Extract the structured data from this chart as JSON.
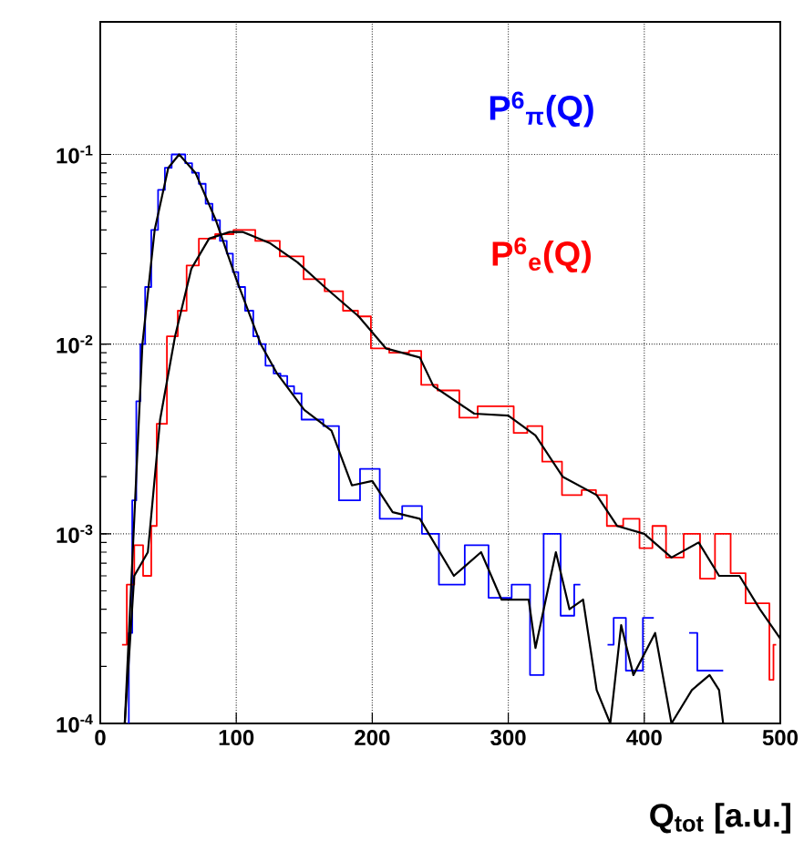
{
  "chart_data": {
    "type": "step",
    "xlabel": "Q$_{tot}$ [a.u.]",
    "xlim": [
      0,
      500
    ],
    "xticks": [
      0,
      100,
      200,
      300,
      400,
      500
    ],
    "ylim": [
      0.0001,
      0.5
    ],
    "log": "y",
    "yticks": [
      {
        "value": 0.0001,
        "label": "10$^{-4}$"
      },
      {
        "value": 0.001,
        "label": "10$^{-3}$"
      },
      {
        "value": 0.01,
        "label": "10$^{-2}$"
      },
      {
        "value": 0.1,
        "label": "10$^{-1}$"
      }
    ],
    "grid": true,
    "legend": false,
    "series": [
      {
        "name": "P$^{6}$$_{π}$(Q)",
        "color": "#0000ff",
        "x": [
          20,
          22,
          25,
          28,
          31,
          35,
          40,
          45,
          50,
          55,
          60,
          65,
          70,
          75,
          80,
          85,
          91,
          95,
          100,
          103,
          110,
          115,
          118,
          125,
          130,
          135,
          140,
          145,
          151,
          160,
          168,
          183,
          199,
          212,
          232,
          241,
          257,
          279,
          292,
          313,
          319,
          333,
          344,
          353,
          357,
          365,
          373,
          382,
          391,
          407,
          413,
          420,
          433,
          445,
          453,
          458
        ],
        "values": [
          0.0001,
          0.0003,
          0.0015,
          0.005,
          0.01,
          0.02,
          0.04,
          0.065,
          0.085,
          0.1,
          0.1,
          0.09,
          0.08,
          0.07,
          0.055,
          0.045,
          0.035,
          0.03,
          0.024,
          0.02,
          0.015,
          0.011,
          0.01,
          0.0077,
          0.007,
          0.0068,
          0.006,
          0.0055,
          0.004,
          0.004,
          0.0037,
          0.0015,
          0.0022,
          0.0012,
          0.0014,
          0.001,
          0.00054,
          0.00087,
          0.00046,
          0.00054,
          0.00018,
          0.001,
          0.00037,
          0.00054,
          null,
          null,
          0.00026,
          0.00036,
          0.00019,
          0.00036,
          null,
          null,
          0.0003,
          0.00019,
          0.00019,
          0.00019
        ]
      },
      {
        "name": "P$^{6}$$_{e}$(Q)",
        "color": "#ff0000",
        "x": [
          16,
          23,
          27,
          36,
          39,
          44,
          54,
          60,
          67,
          78,
          91,
          105,
          123,
          141,
          158,
          172,
          185,
          194,
          204,
          221,
          233,
          239,
          257,
          271,
          284,
          297,
          311,
          317,
          333,
          346,
          362,
          367,
          378,
          391,
          402,
          410,
          422,
          436,
          446,
          458,
          469,
          480,
          491,
          493,
          497
        ],
        "values": [
          0.00026,
          0.00054,
          0.00087,
          0.0006,
          0.0011,
          0.0038,
          0.011,
          0.015,
          0.026,
          0.036,
          0.038,
          0.04,
          0.035,
          0.029,
          0.022,
          0.019,
          0.015,
          0.014,
          0.0095,
          0.009,
          0.0092,
          0.0061,
          0.0057,
          0.0041,
          0.0047,
          0.0047,
          0.0034,
          0.0037,
          0.0024,
          0.0016,
          0.0017,
          0.0016,
          0.0011,
          0.0012,
          0.00084,
          0.0011,
          0.00075,
          0.001,
          0.00058,
          0.001,
          0.00062,
          0.00043,
          0.00043,
          0.00017,
          0.00026
        ]
      },
      {
        "type": "line",
        "color": "#000000",
        "x": [
          18,
          25,
          31,
          40,
          50,
          58,
          70,
          85,
          100,
          118,
          130,
          150,
          170,
          185,
          200,
          215,
          235,
          260,
          280,
          295,
          315,
          320,
          335,
          345,
          355,
          365,
          375,
          383,
          392,
          408,
          420,
          435,
          448,
          455,
          458
        ],
        "values": [
          0.0001,
          0.0012,
          0.01,
          0.04,
          0.085,
          0.1,
          0.08,
          0.045,
          0.022,
          0.01,
          0.007,
          0.0045,
          0.0035,
          0.0018,
          0.0019,
          0.0013,
          0.0012,
          0.0006,
          0.0008,
          0.00045,
          0.00045,
          0.00025,
          0.0008,
          0.0004,
          0.00045,
          0.00015,
          0.0001,
          0.00033,
          0.00018,
          0.0003,
          0.0001,
          0.00015,
          0.00018,
          0.00015,
          0.0001
        ]
      },
      {
        "type": "line",
        "color": "#000000",
        "x": [
          18,
          25,
          35,
          44,
          55,
          67,
          80,
          95,
          105,
          125,
          145,
          165,
          190,
          210,
          235,
          245,
          275,
          300,
          320,
          340,
          365,
          380,
          400,
          420,
          440,
          455,
          470,
          485,
          500
        ],
        "values": [
          0.0001,
          0.0006,
          0.0008,
          0.004,
          0.011,
          0.025,
          0.036,
          0.039,
          0.039,
          0.034,
          0.027,
          0.02,
          0.014,
          0.0095,
          0.0085,
          0.006,
          0.0043,
          0.0042,
          0.0033,
          0.002,
          0.0016,
          0.0011,
          0.001,
          0.00075,
          0.0009,
          0.0006,
          0.0006,
          0.0004,
          0.00028
        ]
      }
    ]
  }
}
